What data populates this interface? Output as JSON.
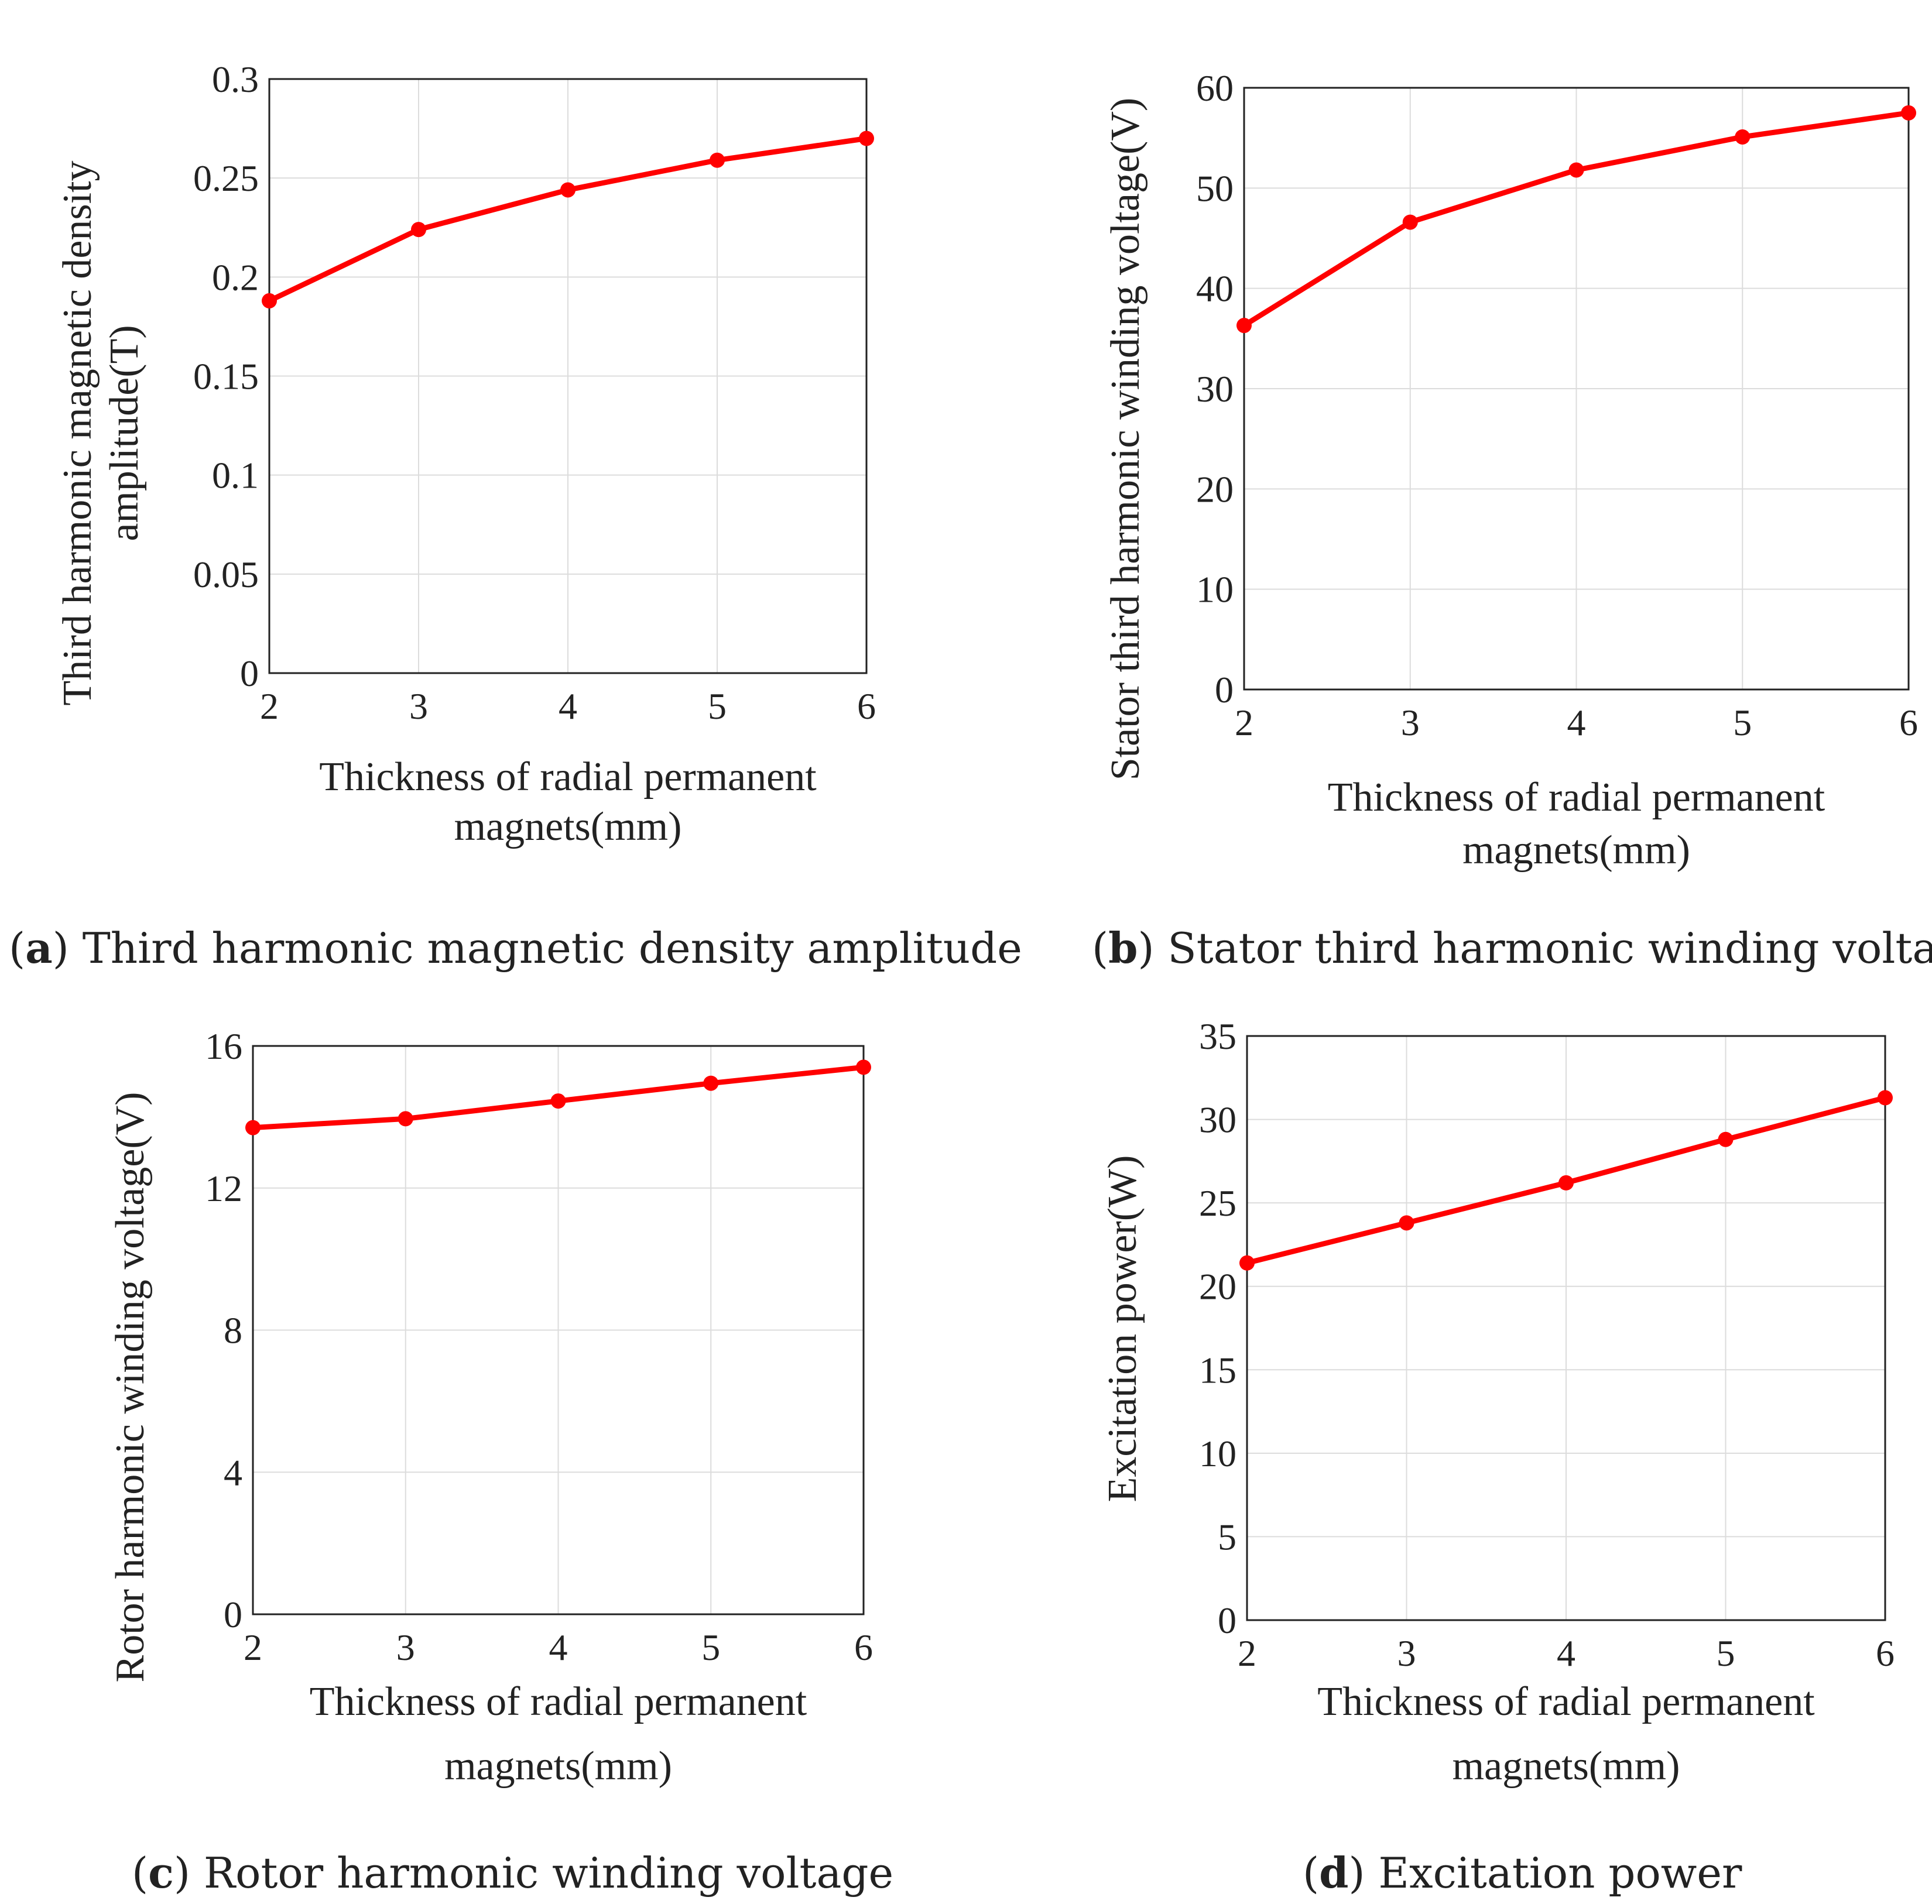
{
  "figure": {
    "panels": [
      {
        "caption_prefix": "(",
        "caption_letter": "a",
        "caption_suffix": ")",
        "caption_text": " Third harmonic magnetic density amplitude"
      },
      {
        "caption_prefix": "(",
        "caption_letter": "b",
        "caption_suffix": ")",
        "caption_text": " Stator third harmonic winding voltage"
      },
      {
        "caption_prefix": "(",
        "caption_letter": "c",
        "caption_suffix": ")",
        "caption_text": " Rotor harmonic winding voltage"
      },
      {
        "caption_prefix": "(",
        "caption_letter": "d",
        "caption_suffix": ")",
        "caption_text": " Excitation power"
      }
    ]
  },
  "chart_data": [
    {
      "type": "line",
      "title": "Third harmonic magnetic density amplitude",
      "xlabel_lines": [
        "Thickness of radial permanent",
        "magnets(mm)"
      ],
      "ylabel_lines": [
        "Third harmonic magnetic density",
        "amplitude(T)"
      ],
      "x": [
        2,
        3,
        4,
        5,
        6
      ],
      "series": [
        {
          "name": "amplitude",
          "values": [
            0.188,
            0.224,
            0.244,
            0.259,
            0.27
          ],
          "color": "#ff0000"
        }
      ],
      "xlim": [
        2,
        6
      ],
      "ylim": [
        0,
        0.3
      ],
      "xticks": [
        "2",
        "3",
        "4",
        "5",
        "6"
      ],
      "yticks": [
        0,
        0.05,
        0.1,
        0.15,
        0.2,
        0.25,
        0.3
      ],
      "ytick_labels": [
        "0",
        "0.05",
        "0.1",
        "0.15",
        "0.2",
        "0.25",
        "0.3"
      ],
      "grid": true
    },
    {
      "type": "line",
      "title": "Stator third harmonic winding voltage",
      "xlabel_lines": [
        "Thickness of radial permanent",
        "magnets(mm)"
      ],
      "ylabel_lines": [
        "Stator third harmonic winding voltage(V)"
      ],
      "x": [
        2,
        3,
        4,
        5,
        6
      ],
      "series": [
        {
          "name": "voltage",
          "values": [
            36.3,
            46.6,
            51.8,
            55.1,
            57.5
          ],
          "color": "#ff0000"
        }
      ],
      "xlim": [
        2,
        6
      ],
      "ylim": [
        0,
        60
      ],
      "xticks": [
        "2",
        "3",
        "4",
        "5",
        "6"
      ],
      "yticks": [
        0,
        10,
        20,
        30,
        40,
        50,
        60
      ],
      "ytick_labels": [
        "0",
        "10",
        "20",
        "30",
        "40",
        "50",
        "60"
      ],
      "grid": true
    },
    {
      "type": "line",
      "title": "Rotor harmonic winding voltage",
      "xlabel_lines": [
        "Thickness of radial permanent",
        "magnets(mm)"
      ],
      "ylabel_lines": [
        "Rotor harmonic winding voltage(V)"
      ],
      "x": [
        2,
        3,
        4,
        5,
        6
      ],
      "series": [
        {
          "name": "voltage",
          "values": [
            13.7,
            13.95,
            14.45,
            14.95,
            15.4
          ],
          "color": "#ff0000"
        }
      ],
      "xlim": [
        2,
        6
      ],
      "ylim": [
        0,
        16
      ],
      "xticks": [
        "2",
        "3",
        "4",
        "5",
        "6"
      ],
      "yticks": [
        0,
        4,
        8,
        12,
        16
      ],
      "ytick_labels": [
        "0",
        "4",
        "8",
        "12",
        "16"
      ],
      "grid": true
    },
    {
      "type": "line",
      "title": "Excitation power",
      "xlabel_lines": [
        "Thickness of radial permanent",
        "magnets(mm)"
      ],
      "ylabel_lines": [
        "Excitation power(W)"
      ],
      "x": [
        2,
        3,
        4,
        5,
        6
      ],
      "series": [
        {
          "name": "power",
          "values": [
            21.4,
            23.8,
            26.2,
            28.8,
            31.3
          ],
          "color": "#ff0000"
        }
      ],
      "xlim": [
        2,
        6
      ],
      "ylim": [
        0,
        35
      ],
      "xticks": [
        "2",
        "3",
        "4",
        "5",
        "6"
      ],
      "yticks": [
        0,
        5,
        10,
        15,
        20,
        25,
        30,
        35
      ],
      "ytick_labels": [
        "0",
        "5",
        "10",
        "15",
        "20",
        "25",
        "30",
        "35"
      ],
      "grid": true
    }
  ]
}
